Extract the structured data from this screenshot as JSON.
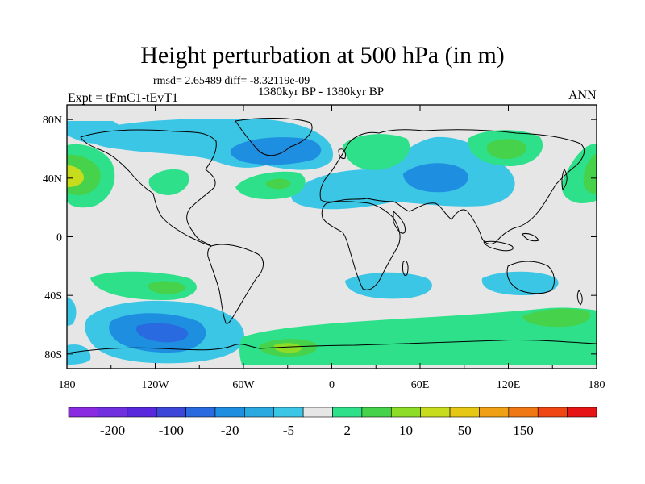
{
  "header": {
    "title": "Height perturbation at 500 hPa (in m)",
    "stats": "rmsd= 2.65489 diff= -8.32119e-09",
    "period": "1380kyr BP - 1380kyr BP",
    "expt": "Expt = tFmC1-tEvT1",
    "season": "ANN"
  },
  "map": {
    "projection": "cylindrical-equidistant",
    "lon_range": [
      -180,
      180
    ],
    "lat_range": [
      -90,
      90
    ],
    "background": "#e6e6e6",
    "lat_ticks": [
      {
        "value": 80,
        "label": "80N"
      },
      {
        "value": 40,
        "label": "40N"
      },
      {
        "value": 0,
        "label": "0"
      },
      {
        "value": -40,
        "label": "40S"
      },
      {
        "value": -80,
        "label": "80S"
      }
    ],
    "lon_ticks": [
      {
        "value": -180,
        "label": "180"
      },
      {
        "value": -120,
        "label": "120W"
      },
      {
        "value": -60,
        "label": "60W"
      },
      {
        "value": 0,
        "label": "0"
      },
      {
        "value": 60,
        "label": "60E"
      },
      {
        "value": 120,
        "label": "120E"
      },
      {
        "value": 180,
        "label": "180"
      }
    ]
  },
  "colorbar": {
    "colors": [
      "#8a2be2",
      "#7030e0",
      "#5a28dc",
      "#3c46d8",
      "#2a6ae0",
      "#1e8ee0",
      "#2aa8e0",
      "#3cc6e6",
      "#e6e6e6",
      "#2ee08a",
      "#46d24a",
      "#8cdc28",
      "#c8dc1e",
      "#e6c814",
      "#f0a014",
      "#f07814",
      "#f04614",
      "#e61414"
    ],
    "labels": [
      "-200",
      "-100",
      "-20",
      "-5",
      "2",
      "10",
      "50",
      "150"
    ]
  }
}
